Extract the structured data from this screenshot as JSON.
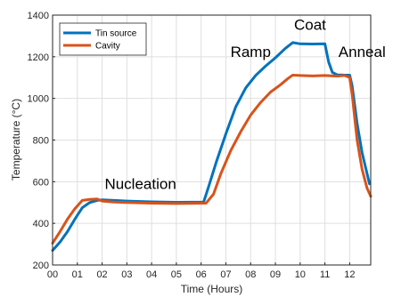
{
  "chart_data": {
    "type": "line",
    "xlabel": "Time (Hours)",
    "ylabel": "Temperature (°C)",
    "xlim": [
      0,
      12.85
    ],
    "ylim": [
      200,
      1400
    ],
    "x_ticks": [
      {
        "value": 0,
        "label": "00"
      },
      {
        "value": 1,
        "label": "01"
      },
      {
        "value": 2,
        "label": "02"
      },
      {
        "value": 3,
        "label": "03"
      },
      {
        "value": 4,
        "label": "04"
      },
      {
        "value": 5,
        "label": "05"
      },
      {
        "value": 6,
        "label": "06"
      },
      {
        "value": 7,
        "label": "07"
      },
      {
        "value": 8,
        "label": "08"
      },
      {
        "value": 9,
        "label": "09"
      },
      {
        "value": 10,
        "label": "10"
      },
      {
        "value": 11,
        "label": "11"
      },
      {
        "value": 12,
        "label": "12"
      }
    ],
    "y_ticks": [
      200,
      400,
      600,
      800,
      1000,
      1200,
      1400
    ],
    "grid": true,
    "legend": "top-left",
    "series": [
      {
        "name": "Tin source",
        "color": "#0072BD",
        "points": [
          [
            0,
            270
          ],
          [
            0.3,
            310
          ],
          [
            0.6,
            360
          ],
          [
            0.9,
            420
          ],
          [
            1.2,
            475
          ],
          [
            1.5,
            500
          ],
          [
            1.8,
            510
          ],
          [
            2.0,
            513
          ],
          [
            2.5,
            510
          ],
          [
            3,
            507
          ],
          [
            4,
            503
          ],
          [
            5,
            501
          ],
          [
            6.1,
            502
          ],
          [
            6.3,
            575
          ],
          [
            6.6,
            690
          ],
          [
            7.0,
            830
          ],
          [
            7.4,
            960
          ],
          [
            7.8,
            1050
          ],
          [
            8.2,
            1110
          ],
          [
            8.6,
            1155
          ],
          [
            9.0,
            1195
          ],
          [
            9.4,
            1240
          ],
          [
            9.7,
            1268
          ],
          [
            10.0,
            1262
          ],
          [
            10.5,
            1261
          ],
          [
            11.0,
            1262
          ],
          [
            11.15,
            1175
          ],
          [
            11.3,
            1125
          ],
          [
            11.5,
            1113
          ],
          [
            11.8,
            1112
          ],
          [
            12.0,
            1112
          ],
          [
            12.1,
            1060
          ],
          [
            12.3,
            880
          ],
          [
            12.5,
            740
          ],
          [
            12.7,
            640
          ],
          [
            12.8,
            590
          ]
        ]
      },
      {
        "name": "Cavity",
        "color": "#D95319",
        "points": [
          [
            0,
            305
          ],
          [
            0.3,
            360
          ],
          [
            0.6,
            420
          ],
          [
            0.9,
            470
          ],
          [
            1.2,
            510
          ],
          [
            1.5,
            515
          ],
          [
            1.8,
            517
          ],
          [
            2.0,
            507
          ],
          [
            2.5,
            502
          ],
          [
            3,
            500
          ],
          [
            4,
            497
          ],
          [
            5,
            495
          ],
          [
            6.2,
            497
          ],
          [
            6.5,
            540
          ],
          [
            6.8,
            640
          ],
          [
            7.2,
            750
          ],
          [
            7.6,
            840
          ],
          [
            8.0,
            920
          ],
          [
            8.4,
            980
          ],
          [
            8.8,
            1030
          ],
          [
            9.2,
            1065
          ],
          [
            9.5,
            1095
          ],
          [
            9.7,
            1112
          ],
          [
            10.0,
            1110
          ],
          [
            10.5,
            1108
          ],
          [
            11.0,
            1110
          ],
          [
            11.5,
            1107
          ],
          [
            11.8,
            1110
          ],
          [
            12.0,
            1100
          ],
          [
            12.1,
            1020
          ],
          [
            12.3,
            800
          ],
          [
            12.5,
            660
          ],
          [
            12.7,
            570
          ],
          [
            12.85,
            530
          ]
        ]
      }
    ],
    "annotations": [
      {
        "text": "Nucleation",
        "x": 3.55,
        "y": 565
      },
      {
        "text": "Ramp",
        "x": 8.0,
        "y": 1200
      },
      {
        "text": "Coat",
        "x": 10.4,
        "y": 1330
      },
      {
        "text": "Anneal",
        "x": 12.5,
        "y": 1200
      }
    ]
  }
}
